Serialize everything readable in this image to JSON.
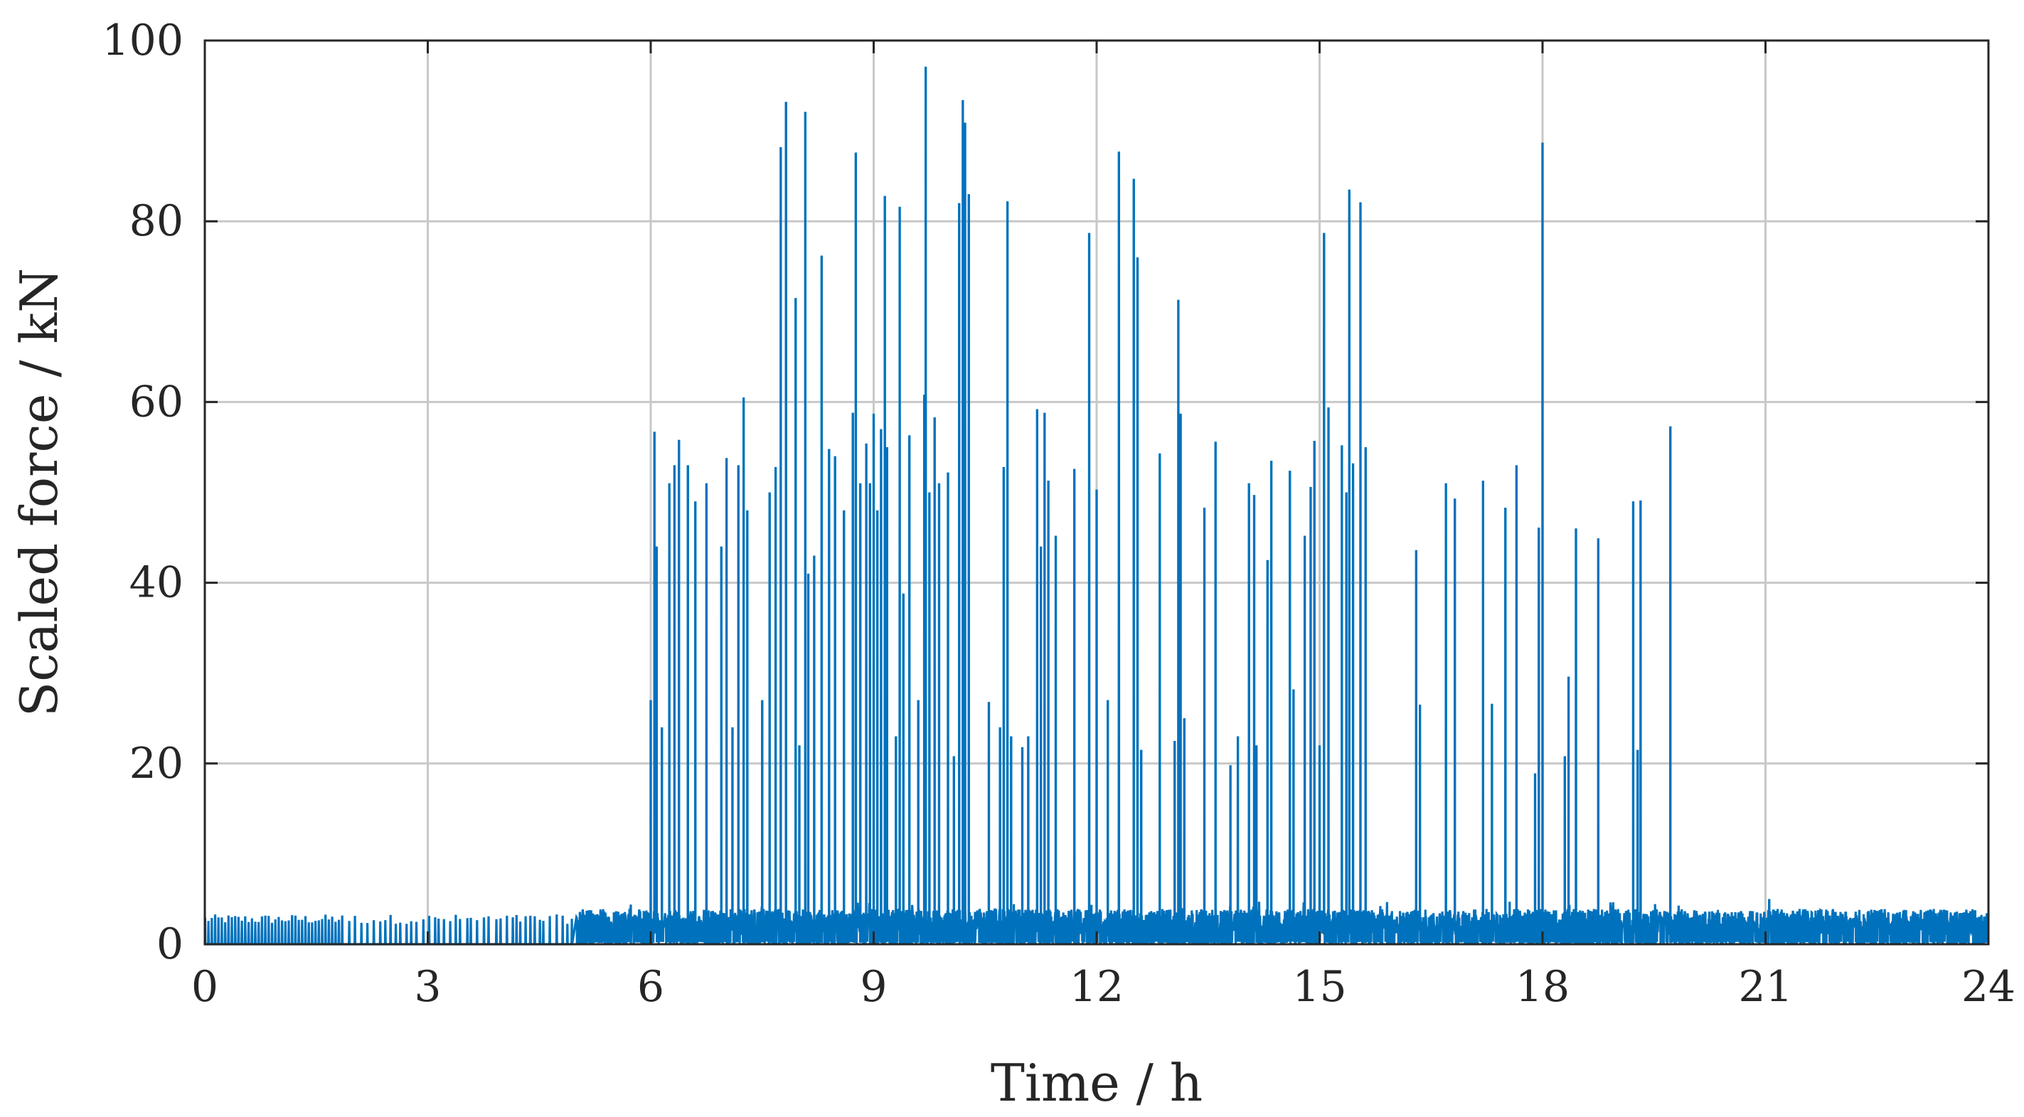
{
  "chart_data": {
    "type": "line",
    "title": "",
    "xlabel": "Time / h",
    "ylabel": "Scaled force / kN",
    "xlim": [
      0,
      24
    ],
    "ylim": [
      0,
      100
    ],
    "xticks": [
      0,
      3,
      6,
      9,
      12,
      15,
      18,
      21,
      24
    ],
    "yticks": [
      0,
      20,
      40,
      60,
      80,
      100
    ],
    "x_tick_labels": [
      "0",
      "3",
      "6",
      "9",
      "12",
      "15",
      "18",
      "21",
      "24"
    ],
    "y_tick_labels": [
      "0",
      "20",
      "40",
      "60",
      "80",
      "100"
    ],
    "grid": true,
    "line_color": "#0072bd",
    "baseline_noise": [
      {
        "x_start": 0.0,
        "x_end": 5.0,
        "level": 3.0,
        "note": "sparse spikes ~3 kN"
      },
      {
        "x_start": 5.0,
        "x_end": 24.0,
        "level": 3.5,
        "note": "dense baseline ~3-4 kN"
      }
    ],
    "peaks": [
      {
        "x": 6.0,
        "y": 27
      },
      {
        "x": 6.05,
        "y": 56.7
      },
      {
        "x": 6.08,
        "y": 44
      },
      {
        "x": 6.15,
        "y": 24
      },
      {
        "x": 6.25,
        "y": 51
      },
      {
        "x": 6.32,
        "y": 53
      },
      {
        "x": 6.38,
        "y": 55.8
      },
      {
        "x": 6.5,
        "y": 53
      },
      {
        "x": 6.6,
        "y": 49
      },
      {
        "x": 6.75,
        "y": 51
      },
      {
        "x": 6.95,
        "y": 44
      },
      {
        "x": 7.02,
        "y": 53.8
      },
      {
        "x": 7.1,
        "y": 24
      },
      {
        "x": 7.18,
        "y": 53
      },
      {
        "x": 7.25,
        "y": 60.5
      },
      {
        "x": 7.3,
        "y": 48
      },
      {
        "x": 7.5,
        "y": 27
      },
      {
        "x": 7.6,
        "y": 50
      },
      {
        "x": 7.68,
        "y": 52.8
      },
      {
        "x": 7.75,
        "y": 88.2
      },
      {
        "x": 7.82,
        "y": 93.2
      },
      {
        "x": 7.95,
        "y": 71.5
      },
      {
        "x": 8.0,
        "y": 22
      },
      {
        "x": 8.08,
        "y": 92.1
      },
      {
        "x": 8.12,
        "y": 41
      },
      {
        "x": 8.2,
        "y": 43
      },
      {
        "x": 8.3,
        "y": 76.2
      },
      {
        "x": 8.4,
        "y": 54.8
      },
      {
        "x": 8.48,
        "y": 54
      },
      {
        "x": 8.6,
        "y": 48
      },
      {
        "x": 8.72,
        "y": 58.8
      },
      {
        "x": 8.76,
        "y": 87.6
      },
      {
        "x": 8.82,
        "y": 51
      },
      {
        "x": 8.9,
        "y": 55.4
      },
      {
        "x": 8.95,
        "y": 51
      },
      {
        "x": 9.0,
        "y": 58.7
      },
      {
        "x": 9.05,
        "y": 48
      },
      {
        "x": 9.1,
        "y": 57
      },
      {
        "x": 9.15,
        "y": 82.8
      },
      {
        "x": 9.18,
        "y": 55
      },
      {
        "x": 9.3,
        "y": 23
      },
      {
        "x": 9.35,
        "y": 81.6
      },
      {
        "x": 9.4,
        "y": 38.8
      },
      {
        "x": 9.48,
        "y": 56.3
      },
      {
        "x": 9.6,
        "y": 27
      },
      {
        "x": 9.68,
        "y": 60.8
      },
      {
        "x": 9.7,
        "y": 97.1
      },
      {
        "x": 9.75,
        "y": 50
      },
      {
        "x": 9.82,
        "y": 58.3
      },
      {
        "x": 9.88,
        "y": 51
      },
      {
        "x": 10.0,
        "y": 52.2
      },
      {
        "x": 10.08,
        "y": 20.8
      },
      {
        "x": 10.15,
        "y": 82
      },
      {
        "x": 10.2,
        "y": 93.4
      },
      {
        "x": 10.23,
        "y": 90.9
      },
      {
        "x": 10.28,
        "y": 83
      },
      {
        "x": 10.55,
        "y": 26.8
      },
      {
        "x": 10.7,
        "y": 24
      },
      {
        "x": 10.75,
        "y": 52.8
      },
      {
        "x": 10.8,
        "y": 82.2
      },
      {
        "x": 10.85,
        "y": 23
      },
      {
        "x": 11.0,
        "y": 21.8
      },
      {
        "x": 11.08,
        "y": 23
      },
      {
        "x": 11.2,
        "y": 59.2
      },
      {
        "x": 11.25,
        "y": 44
      },
      {
        "x": 11.3,
        "y": 58.8
      },
      {
        "x": 11.35,
        "y": 51.3
      },
      {
        "x": 11.45,
        "y": 45.2
      },
      {
        "x": 11.7,
        "y": 52.6
      },
      {
        "x": 11.9,
        "y": 78.7
      },
      {
        "x": 12.0,
        "y": 50.3
      },
      {
        "x": 12.15,
        "y": 27
      },
      {
        "x": 12.3,
        "y": 87.7
      },
      {
        "x": 12.5,
        "y": 84.7
      },
      {
        "x": 12.55,
        "y": 76
      },
      {
        "x": 12.6,
        "y": 21.5
      },
      {
        "x": 12.85,
        "y": 54.3
      },
      {
        "x": 13.05,
        "y": 22.5
      },
      {
        "x": 13.1,
        "y": 71.3
      },
      {
        "x": 13.13,
        "y": 58.7
      },
      {
        "x": 13.18,
        "y": 25
      },
      {
        "x": 13.45,
        "y": 48.3
      },
      {
        "x": 13.6,
        "y": 55.6
      },
      {
        "x": 13.8,
        "y": 19.8
      },
      {
        "x": 13.9,
        "y": 23
      },
      {
        "x": 14.05,
        "y": 51
      },
      {
        "x": 14.12,
        "y": 49.7
      },
      {
        "x": 14.15,
        "y": 22
      },
      {
        "x": 14.3,
        "y": 42.5
      },
      {
        "x": 14.35,
        "y": 53.5
      },
      {
        "x": 14.6,
        "y": 52.4
      },
      {
        "x": 14.65,
        "y": 28.2
      },
      {
        "x": 14.8,
        "y": 45.2
      },
      {
        "x": 14.88,
        "y": 50.6
      },
      {
        "x": 14.93,
        "y": 55.7
      },
      {
        "x": 15.0,
        "y": 22
      },
      {
        "x": 15.06,
        "y": 78.7
      },
      {
        "x": 15.12,
        "y": 59.4
      },
      {
        "x": 15.3,
        "y": 55.2
      },
      {
        "x": 15.36,
        "y": 50
      },
      {
        "x": 15.4,
        "y": 83.5
      },
      {
        "x": 15.45,
        "y": 53.2
      },
      {
        "x": 15.55,
        "y": 82.1
      },
      {
        "x": 15.62,
        "y": 55
      },
      {
        "x": 16.3,
        "y": 43.6
      },
      {
        "x": 16.35,
        "y": 26.5
      },
      {
        "x": 16.7,
        "y": 51
      },
      {
        "x": 16.82,
        "y": 49.3
      },
      {
        "x": 17.2,
        "y": 51.3
      },
      {
        "x": 17.32,
        "y": 26.6
      },
      {
        "x": 17.5,
        "y": 48.3
      },
      {
        "x": 17.65,
        "y": 53
      },
      {
        "x": 17.9,
        "y": 18.9
      },
      {
        "x": 17.95,
        "y": 46.1
      },
      {
        "x": 18.0,
        "y": 88.7
      },
      {
        "x": 18.3,
        "y": 20.8
      },
      {
        "x": 18.35,
        "y": 29.6
      },
      {
        "x": 18.45,
        "y": 46
      },
      {
        "x": 18.75,
        "y": 44.9
      },
      {
        "x": 19.22,
        "y": 49
      },
      {
        "x": 19.28,
        "y": 21.5
      },
      {
        "x": 19.32,
        "y": 49.1
      },
      {
        "x": 19.72,
        "y": 57.3
      },
      {
        "x": 21.05,
        "y": 5
      }
    ]
  }
}
